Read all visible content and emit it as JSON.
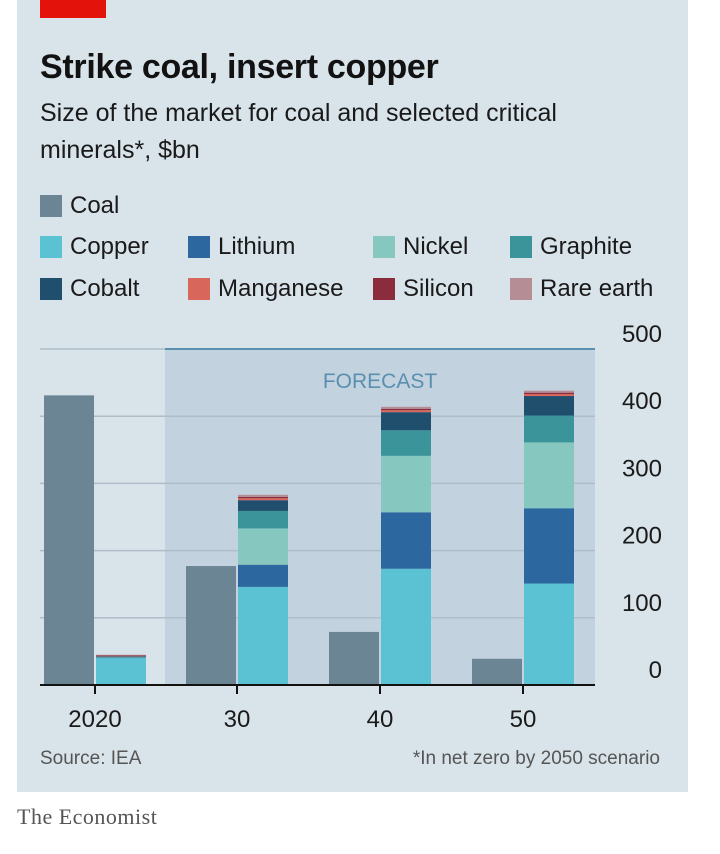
{
  "title": "Strike coal, insert copper",
  "subtitle": "Size of the market for coal and selected critical minerals*, $bn",
  "source": "Source: IEA",
  "footnote": "*In net zero by 2050 scenario",
  "brand": "The Economist",
  "colors": {
    "coal": "#6c8595",
    "copper": "#5bc2d4",
    "lithium": "#2c67a0",
    "nickel": "#86c8bf",
    "graphite": "#3b9499",
    "cobalt": "#204f6e",
    "manganese": "#d9665b",
    "silicon": "#8a2c3b",
    "rare_earth": "#b58d95",
    "forecast_band": "#c2d3df",
    "gridline": "#aebdc8",
    "accent": "#e3120b"
  },
  "legend": [
    {
      "key": "coal",
      "label": "Coal"
    },
    {
      "key": "copper",
      "label": "Copper"
    },
    {
      "key": "lithium",
      "label": "Lithium"
    },
    {
      "key": "nickel",
      "label": "Nickel"
    },
    {
      "key": "graphite",
      "label": "Graphite"
    },
    {
      "key": "cobalt",
      "label": "Cobalt"
    },
    {
      "key": "manganese",
      "label": "Manganese"
    },
    {
      "key": "silicon",
      "label": "Silicon"
    },
    {
      "key": "rare_earth",
      "label": "Rare earth"
    }
  ],
  "chart_data": {
    "type": "bar",
    "title": "Strike coal, insert copper",
    "subtitle": "Size of the market for coal and selected critical minerals*, $bn",
    "categories": [
      "2020",
      "30",
      "40",
      "50"
    ],
    "forecast_label": "FORECAST",
    "forecast_from_category": "30",
    "ylim": [
      0,
      500
    ],
    "yticks": [
      0,
      100,
      200,
      300,
      400,
      500
    ],
    "coal": {
      "name": "Coal",
      "values": [
        431,
        177,
        79,
        39
      ]
    },
    "minerals_stack": [
      {
        "key": "copper",
        "name": "Copper",
        "values": [
          40,
          146,
          173,
          151
        ]
      },
      {
        "key": "lithium",
        "name": "Lithium",
        "values": [
          1,
          33,
          84,
          112
        ]
      },
      {
        "key": "nickel",
        "name": "Nickel",
        "values": [
          1,
          54,
          84,
          98
        ]
      },
      {
        "key": "graphite",
        "name": "Graphite",
        "values": [
          0.5,
          26,
          38,
          40
        ]
      },
      {
        "key": "cobalt",
        "name": "Cobalt",
        "values": [
          0.5,
          16,
          27,
          29
        ]
      },
      {
        "key": "manganese",
        "name": "Manganese",
        "values": [
          0.5,
          3,
          3,
          3
        ]
      },
      {
        "key": "silicon",
        "name": "Silicon",
        "values": [
          0.5,
          2,
          2,
          2
        ]
      },
      {
        "key": "rare_earth",
        "name": "Rare earth",
        "values": [
          1,
          3,
          3,
          3
        ]
      }
    ]
  }
}
